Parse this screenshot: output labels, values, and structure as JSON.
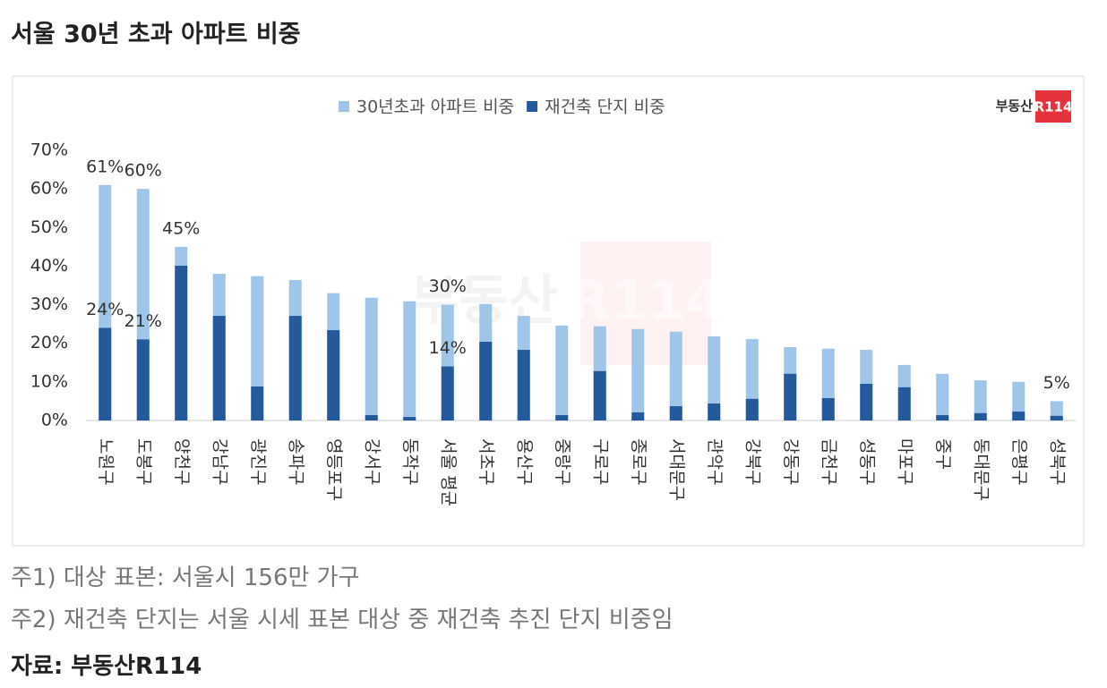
{
  "title": "서울 30년 초과 아파트 비중",
  "logo": [
    "부동산",
    "R114"
  ],
  "chart_data": {
    "type": "bar",
    "categories": [
      "노원구",
      "도봉구",
      "양천구",
      "강남구",
      "광진구",
      "송파구",
      "영등포구",
      "강서구",
      "동작구",
      "서울 평균",
      "서초구",
      "용산구",
      "중랑구",
      "구로구",
      "종로구",
      "서대문구",
      "관악구",
      "강북구",
      "강동구",
      "금천구",
      "성동구",
      "마포구",
      "중구",
      "동대문구",
      "은평구",
      "성북구"
    ],
    "series": [
      {
        "name": "30년초과 아파트 비중",
        "color": "#9fc5e8",
        "values": [
          61,
          60,
          45,
          38,
          37.4,
          36.4,
          33,
          31.8,
          30.9,
          30,
          30.2,
          27.1,
          24.6,
          24.4,
          23.7,
          23,
          21.8,
          21.1,
          19,
          18.6,
          18.3,
          14.4,
          12.1,
          10.4,
          10,
          5
        ],
        "value_labels": [
          "61%",
          "60%",
          "45%",
          null,
          null,
          null,
          null,
          null,
          null,
          "30%",
          null,
          null,
          null,
          null,
          null,
          null,
          null,
          null,
          null,
          null,
          null,
          null,
          null,
          null,
          null,
          "5%"
        ]
      },
      {
        "name": "재건축 단지 비중",
        "color": "#245a9c",
        "values": [
          24,
          21,
          40.1,
          27.1,
          8.8,
          27.1,
          23.4,
          1.4,
          0.9,
          14,
          20.4,
          18.3,
          1.4,
          12.8,
          2.1,
          3.7,
          4.4,
          5.6,
          12.1,
          5.8,
          9.5,
          8.6,
          1.4,
          1.9,
          2.3,
          1.2
        ],
        "value_labels": [
          "24%",
          "21%",
          null,
          null,
          null,
          null,
          null,
          null,
          null,
          "14%",
          null,
          null,
          null,
          null,
          null,
          null,
          null,
          null,
          null,
          null,
          null,
          null,
          null,
          null,
          null,
          null
        ]
      }
    ],
    "ylim": [
      0,
      70
    ],
    "yticks": [
      {
        "value": 0,
        "label": "0%"
      },
      {
        "value": 10,
        "label": "10%"
      },
      {
        "value": 20,
        "label": "20%"
      },
      {
        "value": 30,
        "label": "30%"
      },
      {
        "value": 40,
        "label": "40%"
      },
      {
        "value": 50,
        "label": "50%"
      },
      {
        "value": 60,
        "label": "60%"
      },
      {
        "value": 70,
        "label": "70%"
      }
    ],
    "legend": "top"
  },
  "notes": [
    "주1) 대상 표본: 서울시 156만 가구",
    "주2) 재건축 단지는 서울 시세 표본 대상 중 재건축 추진 단지 비중임"
  ],
  "source": "자료: 부동산R114"
}
